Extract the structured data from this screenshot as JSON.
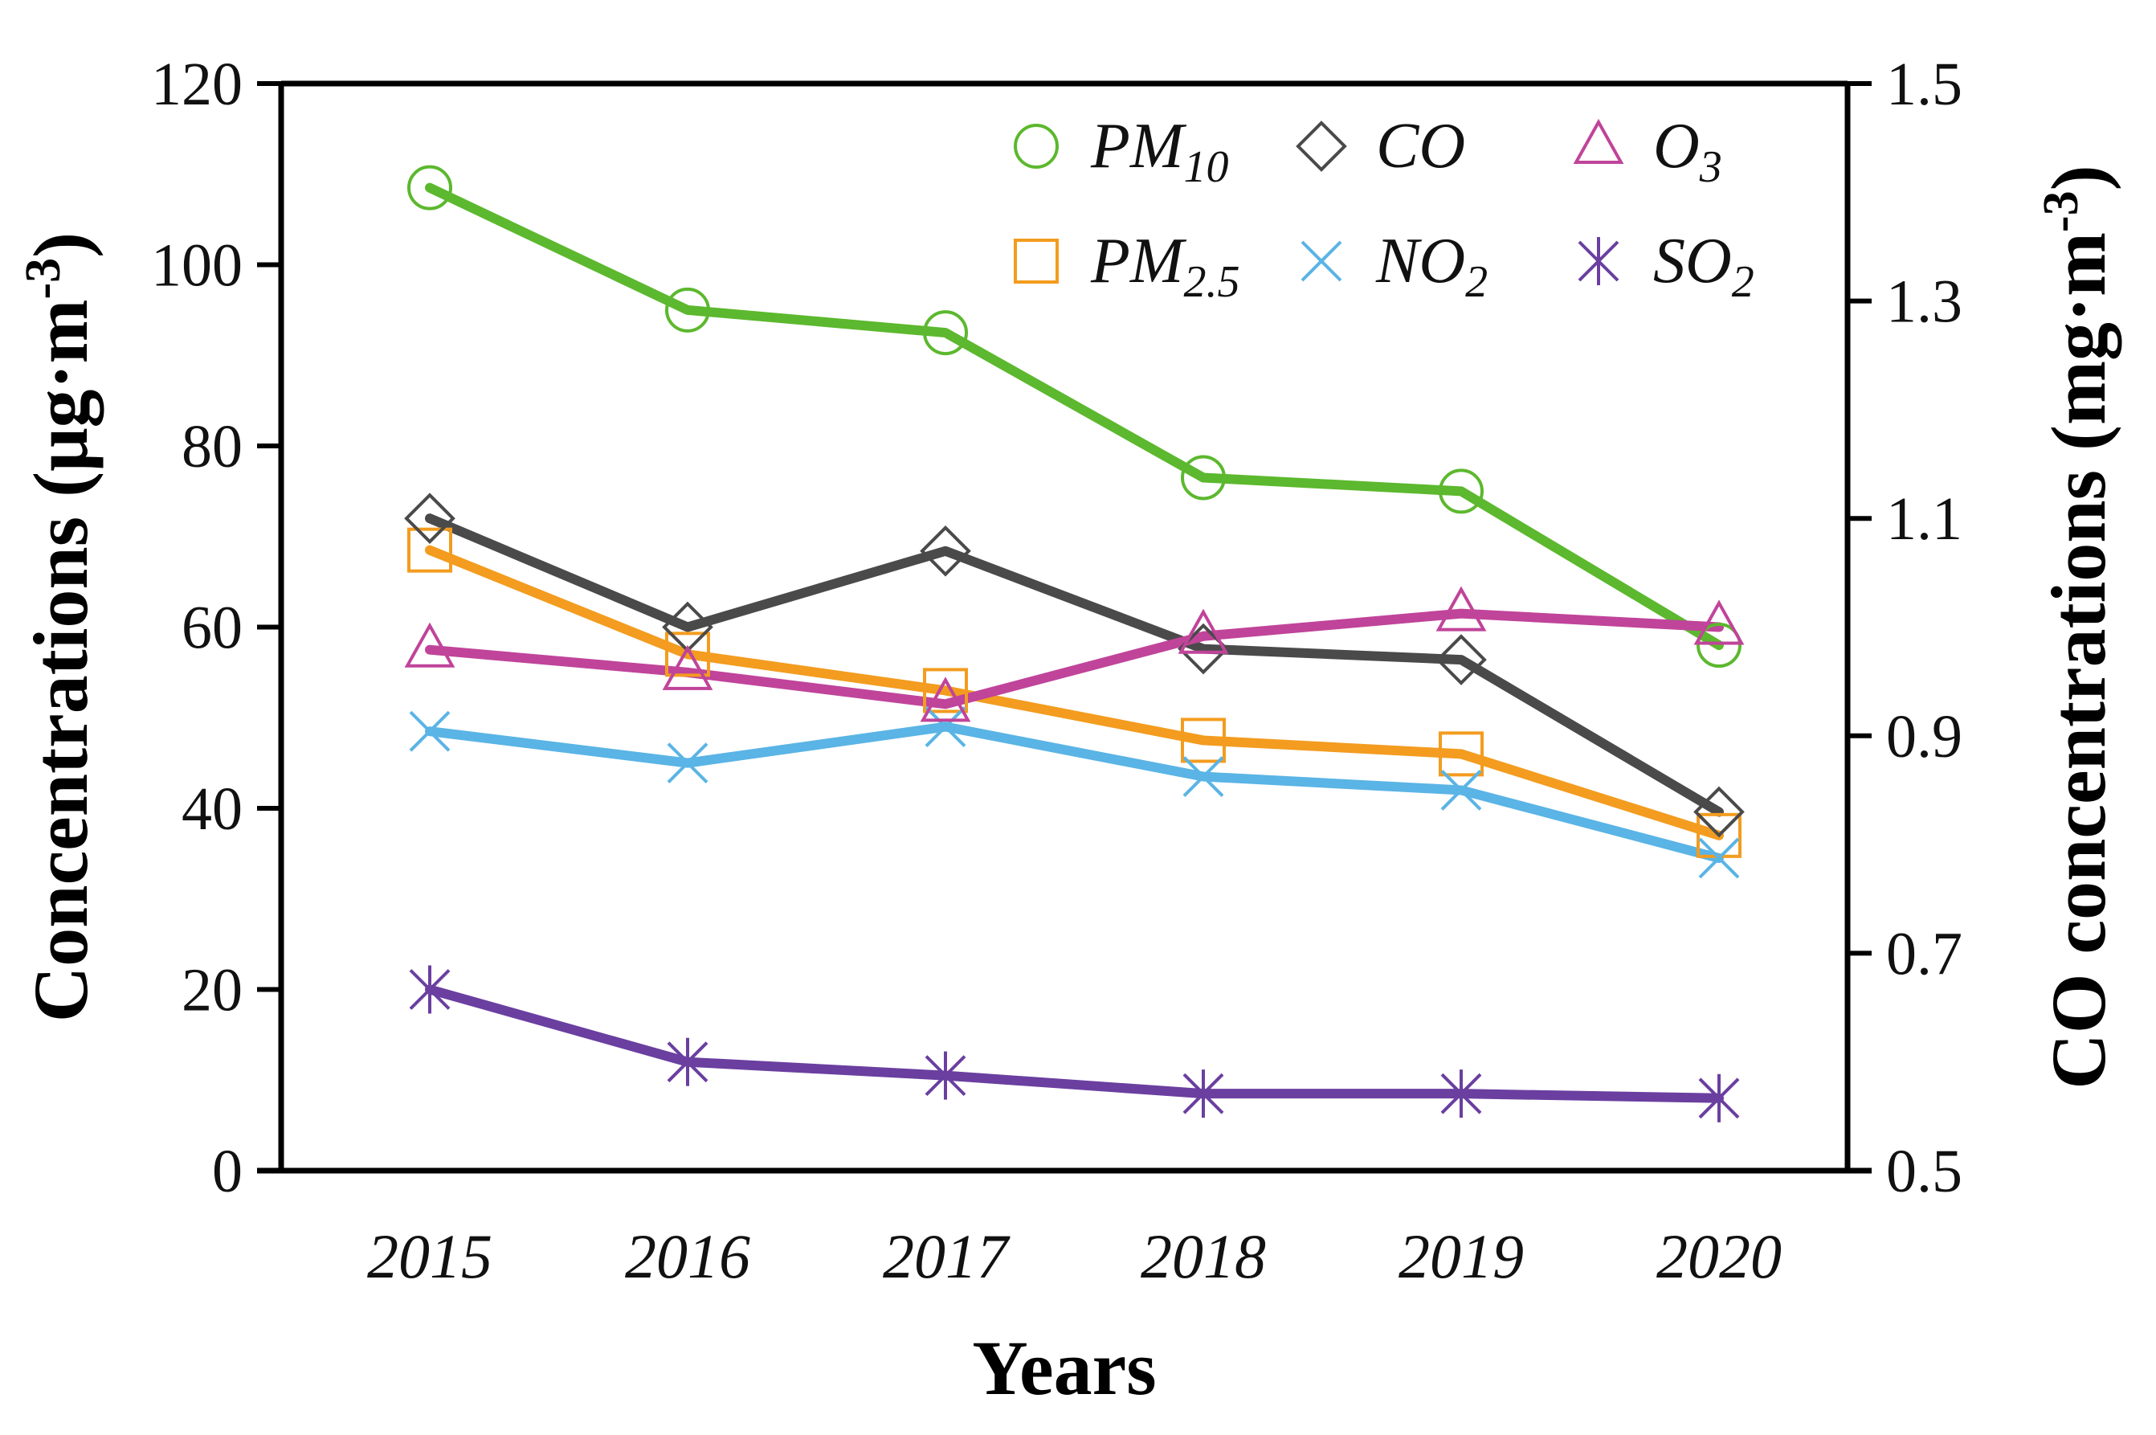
{
  "chart_data": {
    "type": "line",
    "x": [
      "2015",
      "2016",
      "2017",
      "2018",
      "2019",
      "2020"
    ],
    "xlabel": "Years",
    "ylabel": "Concentrations (μg·m",
    "ylabel_sup": "-3",
    "ylabel_end": ")",
    "y2label": "CO concentrations (mg·m",
    "y2label_sup": "-3",
    "y2label_end": ")",
    "ylim": [
      0,
      120
    ],
    "yticks": [
      "0",
      "20",
      "40",
      "60",
      "80",
      "100",
      "120"
    ],
    "y2lim": [
      0.5,
      1.5
    ],
    "y2ticks": [
      "0.5",
      "0.7",
      "0.9",
      "1.1",
      "1.3",
      "1.5"
    ],
    "grid": false,
    "legend_position": "top-right",
    "series": [
      {
        "name": "PM10",
        "legend_main": "PM",
        "legend_sub": "10",
        "axis": "left",
        "color": "#5cb82e",
        "marker": "circle",
        "values": [
          108.5,
          95,
          92.5,
          76.5,
          75,
          58
        ]
      },
      {
        "name": "PM2.5",
        "legend_main": "PM",
        "legend_sub": "2.5",
        "axis": "left",
        "color": "#f39c1f",
        "marker": "square",
        "values": [
          68.5,
          57,
          53,
          47.5,
          46,
          37
        ]
      },
      {
        "name": "CO",
        "legend_main": "CO",
        "legend_sub": "",
        "axis": "right",
        "color": "#4a4a4a",
        "marker": "diamond",
        "values": [
          1.1,
          1.0,
          1.07,
          0.98,
          0.97,
          0.83
        ]
      },
      {
        "name": "NO2",
        "legend_main": "NO",
        "legend_sub": "2",
        "axis": "left",
        "color": "#5ab4e5",
        "marker": "x",
        "values": [
          48.5,
          45,
          49,
          43.5,
          42,
          34.5
        ]
      },
      {
        "name": "O3",
        "legend_main": "O",
        "legend_sub": "3",
        "axis": "left",
        "color": "#c0449a",
        "marker": "triangle",
        "values": [
          57.5,
          55,
          51.5,
          59,
          61.5,
          60
        ]
      },
      {
        "name": "SO2",
        "legend_main": "SO",
        "legend_sub": "2",
        "axis": "left",
        "color": "#6a3fa0",
        "marker": "asterisk",
        "values": [
          20,
          12,
          10.5,
          8.5,
          8.5,
          8
        ]
      }
    ]
  }
}
